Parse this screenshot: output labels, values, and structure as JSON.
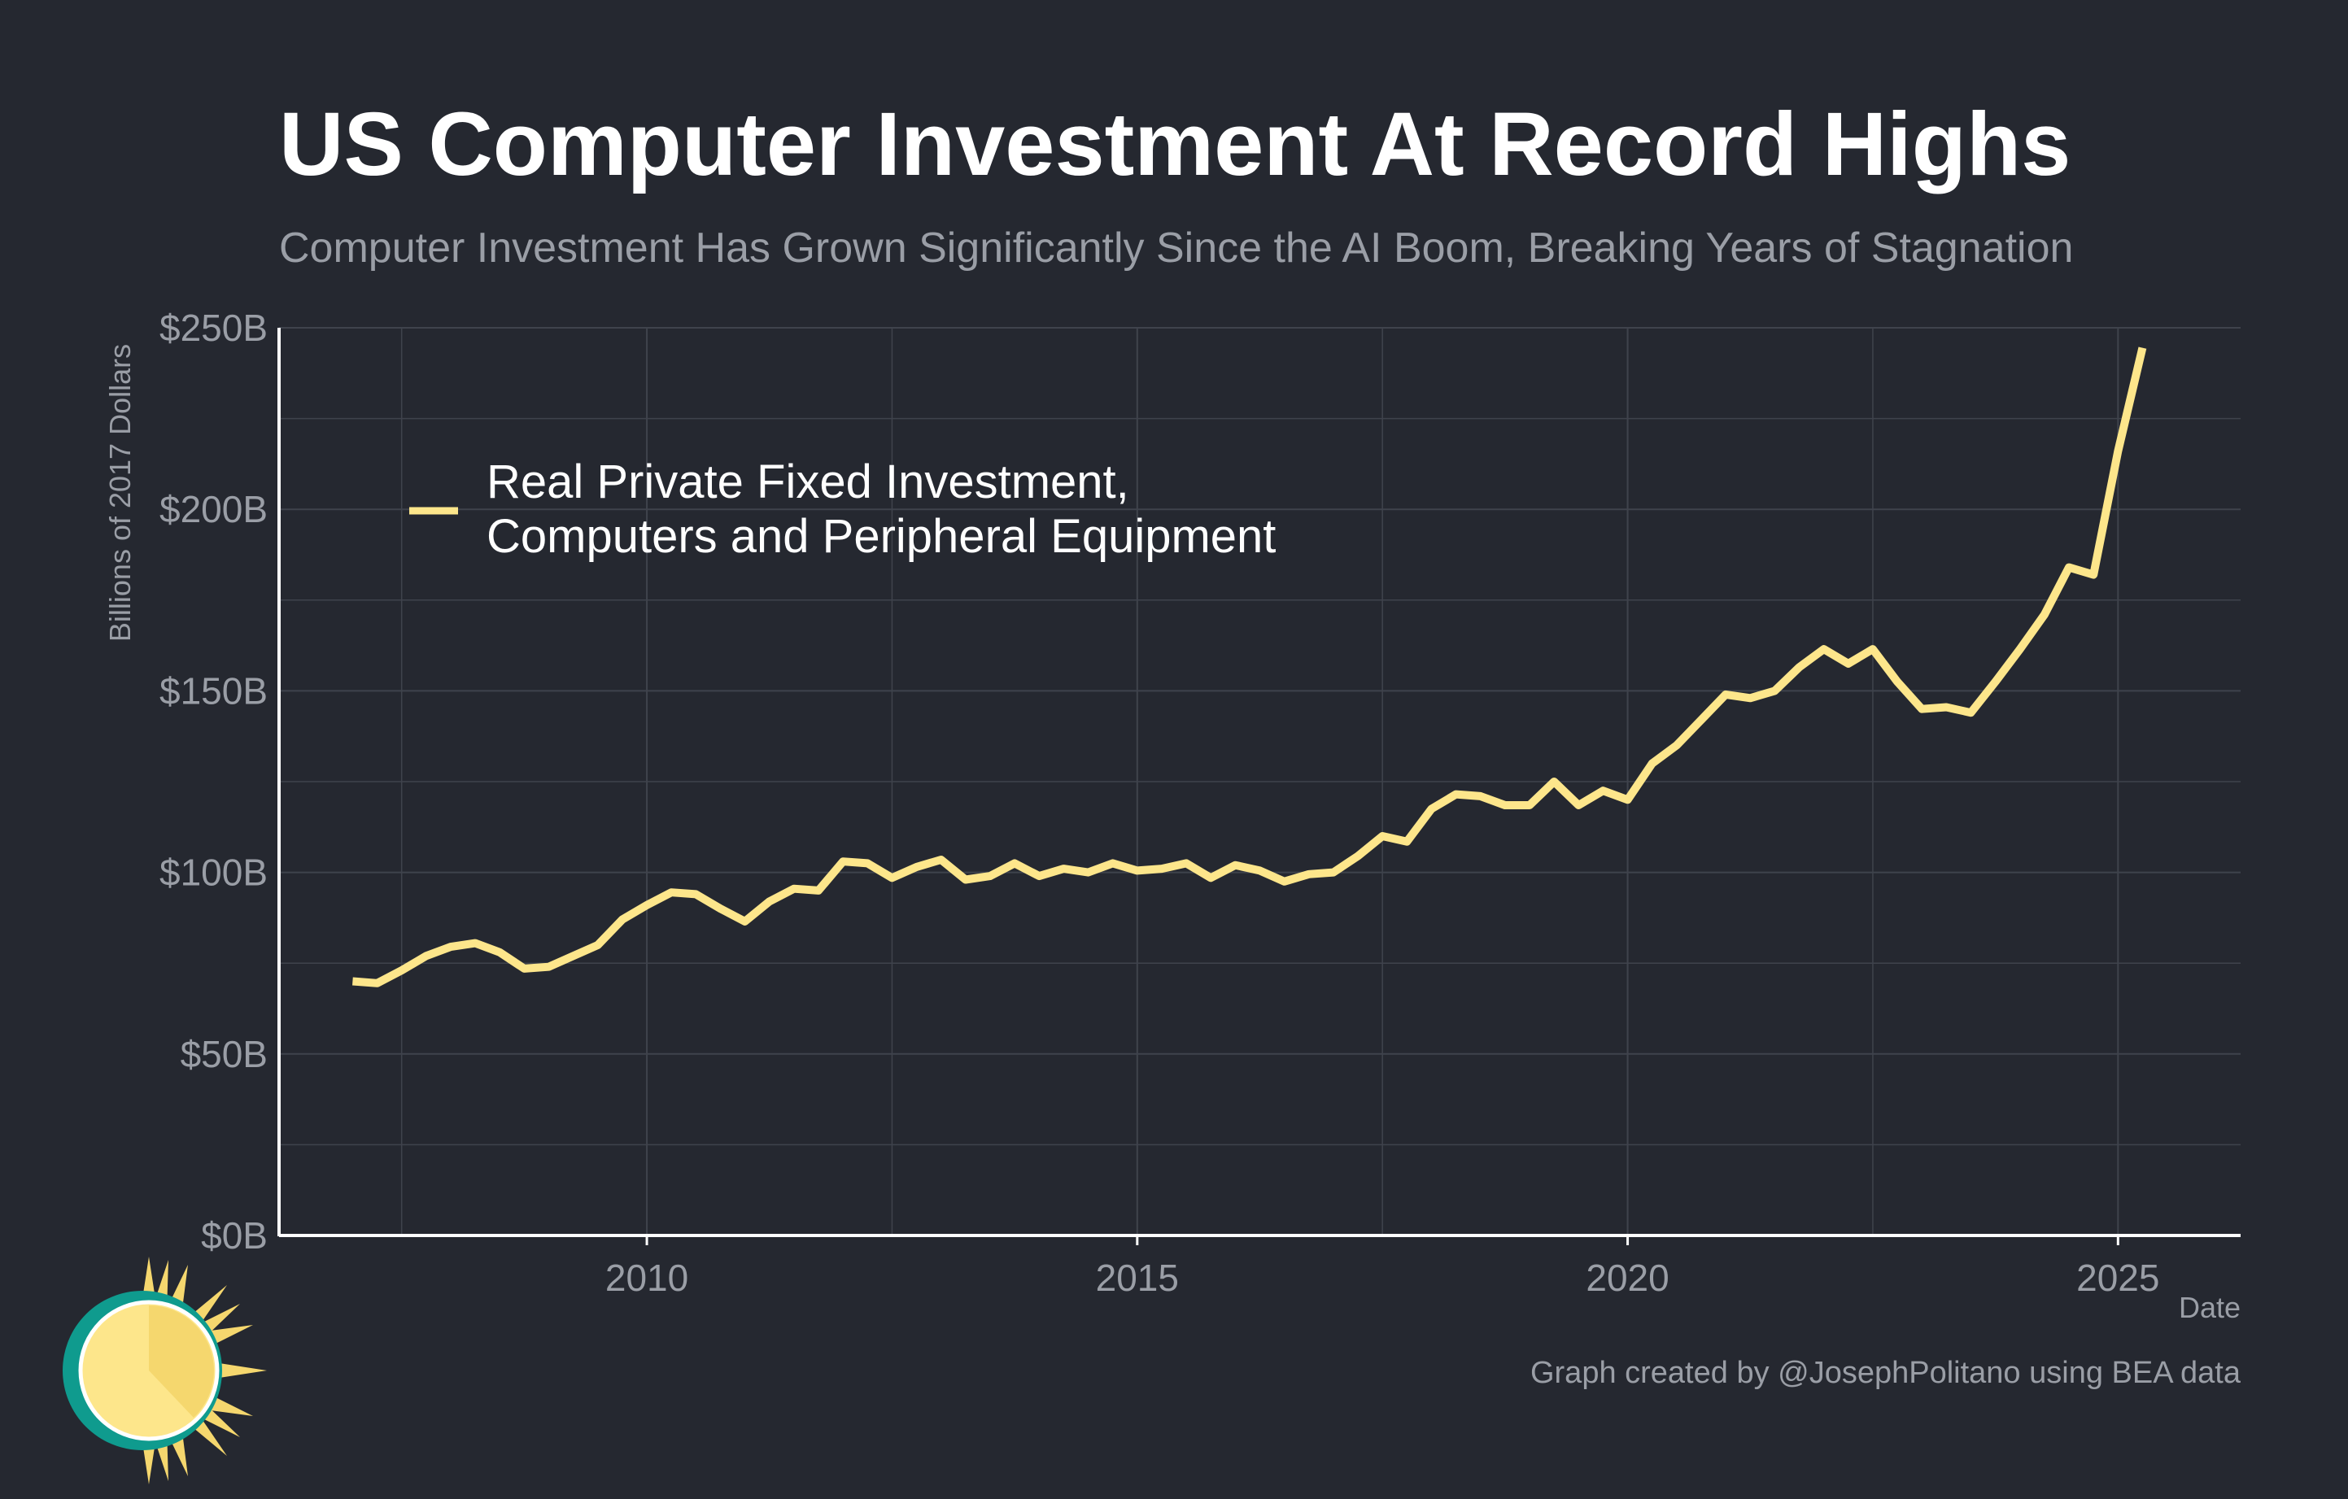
{
  "colors": {
    "background": "#252830",
    "series": "#fde68b",
    "grid": "#3f434c",
    "axis": "#ffffff",
    "muted_text": "#9a9ea6",
    "title_text": "#ffffff",
    "logo_teal": "#0f9b8e",
    "logo_yellow": "#fde68b",
    "logo_gold": "#f5d76e"
  },
  "logo": {
    "icon": "sun-clock-icon"
  },
  "chart_data": {
    "type": "line",
    "title": "US Computer Investment At Record Highs",
    "subtitle": "Computer Investment Has Grown Significantly Since the AI Boom, Breaking Years of Stagnation",
    "xlabel": "Date",
    "ylabel": "Billions of 2017 Dollars",
    "xlim": [
      2006.25,
      2026.25
    ],
    "ylim": [
      0,
      250
    ],
    "x_ticks": [
      2010,
      2015,
      2020,
      2025
    ],
    "x_tick_labels": [
      "2010",
      "2015",
      "2020",
      "2025"
    ],
    "y_ticks": [
      0,
      50,
      100,
      150,
      200,
      250
    ],
    "y_tick_labels": [
      "$0B",
      "$50B",
      "$100B",
      "$150B",
      "$200B",
      "$250B"
    ],
    "grid": true,
    "legend_position": "top-left",
    "credit": "Graph created by @JosephPolitano using BEA data",
    "series": [
      {
        "name": "Real Private Fixed Investment, Computers and Peripheral Equipment",
        "legend_lines": [
          "Real Private Fixed Investment,",
          "Computers and Peripheral Equipment"
        ],
        "start": 2007.0,
        "step": 0.25,
        "values": [
          70,
          69.5,
          73,
          77,
          79.5,
          80.5,
          78,
          73.5,
          74,
          77,
          80,
          87,
          91,
          94.5,
          94,
          90,
          86.5,
          92,
          95.5,
          95,
          103,
          102.5,
          98.5,
          101.5,
          103.5,
          98,
          99,
          102.5,
          99,
          101,
          100,
          102.5,
          100.5,
          101,
          102.5,
          98.5,
          102,
          100.5,
          97.5,
          99.5,
          100,
          104.5,
          110,
          108.5,
          117.5,
          121.5,
          121,
          118.5,
          118.5,
          125,
          118.5,
          122.5,
          120,
          130,
          135,
          142,
          149,
          148,
          150,
          156.5,
          161.5,
          157.5,
          161.5,
          152.5,
          145,
          145.5,
          144,
          152.5,
          161.5,
          171,
          184,
          182,
          216,
          244.5
        ]
      }
    ]
  }
}
